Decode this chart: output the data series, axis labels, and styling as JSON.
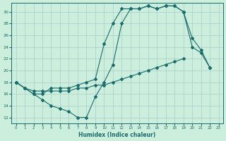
{
  "xlabel": "Humidex (Indice chaleur)",
  "bg_color": "#cceedd",
  "line_color": "#1a6b6b",
  "grid_color": "#aacccc",
  "xlim": [
    -0.5,
    23.5
  ],
  "ylim": [
    11,
    31.5
  ],
  "yticks": [
    12,
    14,
    16,
    18,
    20,
    22,
    24,
    26,
    28,
    30
  ],
  "xticks": [
    0,
    1,
    2,
    3,
    4,
    5,
    6,
    7,
    8,
    9,
    10,
    11,
    12,
    13,
    14,
    15,
    16,
    17,
    18,
    19,
    20,
    21,
    22,
    23
  ],
  "series": [
    {
      "x": [
        0,
        1,
        2,
        3,
        4,
        5,
        6,
        7,
        8,
        9,
        10,
        11,
        12,
        13,
        14,
        15,
        16,
        17,
        18,
        19,
        20,
        21,
        22
      ],
      "y": [
        18,
        17,
        16,
        16,
        17,
        17,
        17,
        17.5,
        18,
        18.5,
        24.5,
        28,
        30.5,
        30.5,
        30.5,
        31,
        30.5,
        31,
        31,
        30,
        25.5,
        23.5,
        20.5
      ]
    },
    {
      "x": [
        0,
        1,
        2,
        3,
        4,
        5,
        6,
        7,
        8,
        9,
        10,
        11,
        12,
        13,
        14,
        15,
        16,
        17,
        18,
        19,
        20,
        21,
        22
      ],
      "y": [
        18,
        17,
        16,
        15,
        14,
        13.5,
        13,
        12,
        12,
        15.5,
        18,
        21,
        28,
        30.5,
        30.5,
        31,
        30.5,
        31,
        31,
        30,
        24,
        23,
        20.5
      ]
    },
    {
      "x": [
        0,
        1,
        2,
        3,
        4,
        5,
        6,
        7,
        8,
        9,
        10,
        11,
        12,
        13,
        14,
        15,
        16,
        17,
        18,
        19
      ],
      "y": [
        18,
        17,
        16.5,
        16.5,
        16.5,
        16.5,
        16.5,
        17,
        17,
        17.5,
        17.5,
        18,
        18.5,
        19,
        19.5,
        20,
        20.5,
        21,
        21.5,
        22
      ]
    }
  ]
}
